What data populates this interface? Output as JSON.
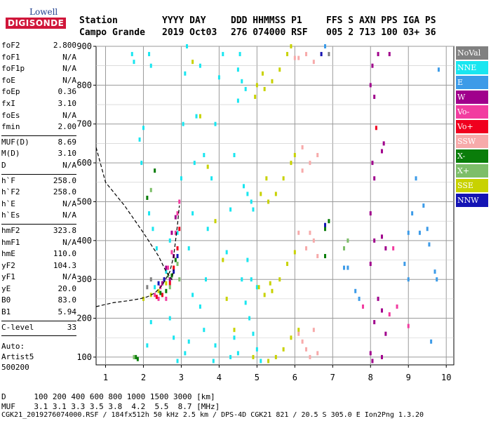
{
  "logo": {
    "line1": "Lowell",
    "line2": "DIGISONDE"
  },
  "header": {
    "col1_label": "Station",
    "col1_value": "Campo Grande",
    "col2_label": "YYYY DAY",
    "col2_value": "2019 Oct03",
    "col3_label": "DDD HHMMSS P1",
    "col3_value": "276 074000 RSF",
    "col4_label": "FFS S AXN PPS IGA PS",
    "col4_value": "005 2 713 100 03+ 36"
  },
  "params": {
    "group1": [
      {
        "key": "foF2",
        "value": "2.800"
      },
      {
        "key": "foF1",
        "value": "N/A"
      },
      {
        "key": "foF1p",
        "value": "N/A"
      },
      {
        "key": "foE",
        "value": "N/A"
      },
      {
        "key": "foEp",
        "value": "0.36"
      },
      {
        "key": "fxI",
        "value": "3.10"
      },
      {
        "key": "foEs",
        "value": "N/A"
      },
      {
        "key": "fmin",
        "value": "2.00"
      }
    ],
    "group2": [
      {
        "key": "MUF(D)",
        "value": "8.69"
      },
      {
        "key": "M(D)",
        "value": "3.10"
      },
      {
        "key": "D",
        "value": "N/A"
      }
    ],
    "group3": [
      {
        "key": "h`F",
        "value": "258.0"
      },
      {
        "key": "h`F2",
        "value": "258.0"
      },
      {
        "key": "h`E",
        "value": "N/A"
      },
      {
        "key": "h`Es",
        "value": "N/A"
      }
    ],
    "group4": [
      {
        "key": "hmF2",
        "value": "323.8"
      },
      {
        "key": "hmF1",
        "value": "N/A"
      },
      {
        "key": "hmE",
        "value": "110.0"
      },
      {
        "key": "yF2",
        "value": "104.3"
      },
      {
        "key": "yF1",
        "value": "N/A"
      },
      {
        "key": "yE",
        "value": "20.0"
      },
      {
        "key": "B0",
        "value": "83.0"
      },
      {
        "key": "B1",
        "value": "5.94"
      }
    ],
    "group5": [
      {
        "key": "C-level",
        "value": "33"
      }
    ]
  },
  "auto_lines": [
    "Auto:",
    "Artist5",
    "500200"
  ],
  "muf_table": {
    "d_label": "D",
    "d_values": [
      "100",
      "200",
      "400",
      "600",
      "800",
      "1000",
      "1500",
      "3000"
    ],
    "d_unit": "[km]",
    "muf_label": "MUF",
    "muf_values": [
      "3.1",
      "3.1",
      "3.3",
      "3.5",
      "3.8",
      "4.2",
      "5.5",
      "8.7"
    ],
    "muf_unit": "[MHz]"
  },
  "footer": "CGK21_2019276074000.RSF / 184fx512h 50 kHz 2.5 km / DPS-4D CGK21 821 / 20.5 S 305.0 E Ion2Png 1.3.20",
  "legend": [
    {
      "label": "NoVal",
      "color": "#808080"
    },
    {
      "label": "NNE",
      "color": "#19e6f0"
    },
    {
      "label": "E",
      "color": "#3c9be8"
    },
    {
      "label": "W",
      "color": "#a0008c"
    },
    {
      "label": "Vo-",
      "color": "#f23ca0"
    },
    {
      "label": "Vo+",
      "color": "#f0001e"
    },
    {
      "label": "SSW",
      "color": "#f7aaaa"
    },
    {
      "label": "X-",
      "color": "#0a7d0a"
    },
    {
      "label": "X+",
      "color": "#7dbe69"
    },
    {
      "label": "SSE",
      "color": "#c8d200"
    },
    {
      "label": "NNW",
      "color": "#1414b4"
    }
  ],
  "chart_data": {
    "type": "scatter",
    "title": "",
    "xlabel": "",
    "ylabel": "",
    "xlim": [
      0.75,
      10.2
    ],
    "ylim": [
      80,
      900
    ],
    "x_ticks": [
      1,
      2,
      3,
      4,
      5,
      6,
      7,
      8,
      9,
      10
    ],
    "y_ticks": [
      100,
      200,
      300,
      400,
      500,
      600,
      700,
      800,
      900
    ],
    "grid": true,
    "legend_position": "right",
    "series": [
      {
        "name": "NNE",
        "color": "#19e6f0",
        "points": [
          [
            1.7,
            880
          ],
          [
            1.75,
            860
          ],
          [
            2.15,
            880
          ],
          [
            2.2,
            850
          ],
          [
            1.9,
            660
          ],
          [
            1.95,
            600
          ],
          [
            2.0,
            690
          ],
          [
            2.15,
            470
          ],
          [
            2.25,
            430
          ],
          [
            2.35,
            380
          ],
          [
            2.6,
            320
          ],
          [
            2.7,
            400
          ],
          [
            2.9,
            420
          ],
          [
            3.0,
            560
          ],
          [
            3.05,
            700
          ],
          [
            3.1,
            830
          ],
          [
            3.15,
            900
          ],
          [
            3.2,
            380
          ],
          [
            3.3,
            470
          ],
          [
            3.35,
            600
          ],
          [
            3.4,
            720
          ],
          [
            3.5,
            850
          ],
          [
            3.6,
            620
          ],
          [
            3.65,
            300
          ],
          [
            3.7,
            430
          ],
          [
            3.8,
            560
          ],
          [
            3.9,
            700
          ],
          [
            4.0,
            820
          ],
          [
            4.1,
            880
          ],
          [
            4.2,
            370
          ],
          [
            4.3,
            480
          ],
          [
            4.4,
            620
          ],
          [
            4.5,
            760
          ],
          [
            4.55,
            880
          ],
          [
            4.6,
            300
          ],
          [
            4.7,
            240
          ],
          [
            4.8,
            200
          ],
          [
            4.9,
            160
          ],
          [
            5.0,
            120
          ],
          [
            5.1,
            90
          ],
          [
            4.5,
            840
          ],
          [
            4.6,
            810
          ],
          [
            4.7,
            790
          ],
          [
            4.3,
            100
          ],
          [
            4.4,
            150
          ],
          [
            4.5,
            110
          ],
          [
            3.85,
            90
          ],
          [
            3.9,
            130
          ],
          [
            3.6,
            170
          ],
          [
            3.5,
            230
          ],
          [
            3.3,
            260
          ],
          [
            3.2,
            140
          ],
          [
            3.1,
            110
          ],
          [
            2.9,
            90
          ],
          [
            2.8,
            150
          ],
          [
            2.7,
            200
          ],
          [
            2.5,
            260
          ],
          [
            2.3,
            280
          ],
          [
            2.2,
            190
          ],
          [
            2.1,
            130
          ],
          [
            4.65,
            540
          ],
          [
            4.75,
            520
          ],
          [
            4.85,
            500
          ],
          [
            4.9,
            480
          ],
          [
            4.75,
            350
          ],
          [
            4.85,
            300
          ],
          [
            5.0,
            280
          ]
        ]
      },
      {
        "name": "SSE",
        "color": "#c8d200",
        "points": [
          [
            5.0,
            800
          ],
          [
            5.2,
            790
          ],
          [
            5.4,
            810
          ],
          [
            5.6,
            840
          ],
          [
            5.8,
            880
          ],
          [
            5.9,
            900
          ],
          [
            4.95,
            770
          ],
          [
            5.1,
            520
          ],
          [
            5.3,
            500
          ],
          [
            5.5,
            520
          ],
          [
            5.7,
            560
          ],
          [
            5.9,
            600
          ],
          [
            6.0,
            620
          ],
          [
            5.05,
            280
          ],
          [
            5.2,
            260
          ],
          [
            5.4,
            270
          ],
          [
            5.6,
            300
          ],
          [
            5.8,
            340
          ],
          [
            6.0,
            370
          ],
          [
            5.3,
            90
          ],
          [
            5.5,
            100
          ],
          [
            5.7,
            120
          ],
          [
            5.9,
            150
          ],
          [
            6.1,
            170
          ],
          [
            4.9,
            100
          ],
          [
            4.2,
            250
          ],
          [
            4.4,
            170
          ],
          [
            4.1,
            350
          ],
          [
            3.9,
            450
          ],
          [
            3.7,
            590
          ],
          [
            3.5,
            720
          ],
          [
            3.3,
            860
          ],
          [
            2.8,
            330
          ],
          [
            2.6,
            290
          ],
          [
            2.4,
            270
          ],
          [
            2.2,
            260
          ],
          [
            2.0,
            250
          ],
          [
            5.15,
            830
          ],
          [
            5.25,
            560
          ],
          [
            5.35,
            290
          ]
        ]
      },
      {
        "name": "SSW",
        "color": "#f7aaaa",
        "points": [
          [
            6.1,
            870
          ],
          [
            6.3,
            880
          ],
          [
            6.5,
            860
          ],
          [
            6.2,
            640
          ],
          [
            6.4,
            600
          ],
          [
            6.6,
            620
          ],
          [
            6.1,
            420
          ],
          [
            6.3,
            380
          ],
          [
            6.5,
            400
          ],
          [
            6.1,
            160
          ],
          [
            6.3,
            120
          ],
          [
            6.5,
            170
          ],
          [
            6.6,
            110
          ],
          [
            6.7,
            880
          ],
          [
            6.0,
            870
          ],
          [
            6.2,
            580
          ],
          [
            6.4,
            420
          ],
          [
            6.6,
            360
          ],
          [
            6.2,
            140
          ],
          [
            6.4,
            100
          ]
        ]
      },
      {
        "name": "W",
        "color": "#a0008c",
        "points": [
          [
            8.0,
            800
          ],
          [
            8.05,
            850
          ],
          [
            8.1,
            770
          ],
          [
            8.2,
            880
          ],
          [
            8.35,
            650
          ],
          [
            8.3,
            630
          ],
          [
            8.05,
            600
          ],
          [
            8.1,
            560
          ],
          [
            8.0,
            470
          ],
          [
            8.3,
            410
          ],
          [
            8.4,
            380
          ],
          [
            8.1,
            400
          ],
          [
            8.0,
            340
          ],
          [
            8.2,
            250
          ],
          [
            8.3,
            220
          ],
          [
            8.4,
            160
          ],
          [
            8.0,
            110
          ],
          [
            8.05,
            90
          ],
          [
            8.3,
            100
          ],
          [
            8.1,
            190
          ],
          [
            2.7,
            300
          ],
          [
            2.6,
            330
          ],
          [
            2.8,
            360
          ],
          [
            2.5,
            290
          ],
          [
            2.75,
            420
          ],
          [
            2.85,
            460
          ],
          [
            8.5,
            880
          ]
        ]
      },
      {
        "name": "E",
        "color": "#3c9be8",
        "points": [
          [
            9.5,
            430
          ],
          [
            9.55,
            390
          ],
          [
            9.0,
            420
          ],
          [
            9.1,
            470
          ],
          [
            9.2,
            560
          ],
          [
            9.3,
            420
          ],
          [
            9.7,
            320
          ],
          [
            9.75,
            300
          ],
          [
            9.4,
            490
          ],
          [
            9.8,
            840
          ],
          [
            7.6,
            270
          ],
          [
            7.7,
            250
          ],
          [
            7.4,
            330
          ],
          [
            8.9,
            340
          ],
          [
            9.0,
            300
          ],
          [
            6.8,
            900
          ],
          [
            7.3,
            330
          ],
          [
            9.6,
            140
          ]
        ]
      },
      {
        "name": "Vo-",
        "color": "#f23ca0",
        "points": [
          [
            2.3,
            260
          ],
          [
            2.45,
            280
          ],
          [
            2.55,
            300
          ],
          [
            2.65,
            330
          ],
          [
            2.75,
            370
          ],
          [
            2.85,
            420
          ],
          [
            2.9,
            470
          ],
          [
            2.6,
            250
          ],
          [
            2.4,
            250
          ],
          [
            2.95,
            500
          ],
          [
            8.5,
            210
          ],
          [
            8.7,
            230
          ],
          [
            9.0,
            180
          ],
          [
            7.8,
            230
          ],
          [
            8.6,
            380
          ]
        ]
      },
      {
        "name": "Vo+",
        "color": "#f0001e",
        "points": [
          [
            2.5,
            260
          ],
          [
            2.7,
            290
          ],
          [
            2.8,
            330
          ],
          [
            2.9,
            380
          ],
          [
            2.35,
            255
          ],
          [
            2.95,
            430
          ],
          [
            8.15,
            690
          ]
        ]
      },
      {
        "name": "X-",
        "color": "#0a7d0a",
        "points": [
          [
            2.6,
            270
          ],
          [
            2.75,
            310
          ],
          [
            2.85,
            350
          ],
          [
            2.45,
            265
          ],
          [
            1.8,
            100
          ],
          [
            1.85,
            95
          ],
          [
            2.3,
            580
          ],
          [
            2.1,
            510
          ],
          [
            6.8,
            360
          ],
          [
            6.8,
            430
          ],
          [
            6.9,
            450
          ]
        ]
      },
      {
        "name": "X+",
        "color": "#7dbe69",
        "points": [
          [
            2.7,
            280
          ],
          [
            2.9,
            340
          ],
          [
            2.95,
            300
          ],
          [
            2.65,
            310
          ],
          [
            1.75,
            100
          ],
          [
            2.2,
            530
          ],
          [
            7.3,
            380
          ],
          [
            7.4,
            400
          ]
        ]
      },
      {
        "name": "NNW",
        "color": "#1414b4",
        "points": [
          [
            2.8,
            320
          ],
          [
            2.55,
            300
          ],
          [
            2.9,
            360
          ],
          [
            2.4,
            290
          ],
          [
            6.7,
            880
          ],
          [
            6.8,
            440
          ]
        ]
      },
      {
        "name": "NoVal",
        "color": "#808080",
        "points": [
          [
            2.2,
            300
          ],
          [
            2.1,
            280
          ],
          [
            6.9,
            880
          ]
        ]
      }
    ],
    "profile_line": {
      "x": [
        0.75,
        1.0,
        1.5,
        2.0,
        2.4,
        2.6,
        2.75,
        2.8
      ],
      "y": [
        640,
        550,
        490,
        420,
        360,
        320,
        300,
        323.8
      ]
    },
    "trace_line": {
      "x": [
        0.75,
        1.2,
        1.6,
        1.9,
        2.1,
        2.3,
        2.5,
        2.7,
        2.8,
        2.85,
        2.9,
        2.95
      ],
      "y": [
        230,
        240,
        245,
        250,
        255,
        265,
        285,
        320,
        360,
        400,
        440,
        490
      ]
    }
  }
}
